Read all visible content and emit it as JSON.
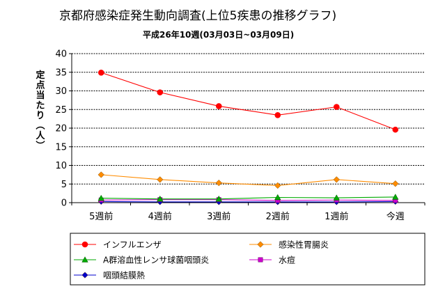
{
  "chart_data": {
    "type": "line",
    "title": "京都府感染症発生動向調査(上位5疾患の推移グラフ)",
    "subtitle": "平成26年10週(03月03日~03月09日)",
    "ylabel": "定点当たり(人)",
    "xlabel": "",
    "ylim": [
      0,
      40
    ],
    "yticks": [
      0,
      5,
      10,
      15,
      20,
      25,
      30,
      35,
      40
    ],
    "grid": true,
    "legend_position": "bottom",
    "categories": [
      "5週前",
      "4週前",
      "3週前",
      "2週前",
      "1週前",
      "今週"
    ],
    "series": [
      {
        "name": "インフルエンザ",
        "color": "#ff0000",
        "marker": "circle",
        "values": [
          34.9,
          29.6,
          25.9,
          23.5,
          25.7,
          19.6
        ]
      },
      {
        "name": "感染性胃腸炎",
        "color": "#ff8c00",
        "marker": "diamond",
        "values": [
          7.5,
          6.2,
          5.3,
          4.6,
          6.2,
          5.1
        ]
      },
      {
        "name": "A群溶血性レンサ球菌咽頭炎",
        "color": "#00aa00",
        "marker": "triangle",
        "values": [
          1.2,
          1.0,
          1.0,
          1.4,
          1.3,
          1.5
        ]
      },
      {
        "name": "水痘",
        "color": "#cc00cc",
        "marker": "square",
        "values": [
          0.7,
          0.8,
          0.8,
          0.6,
          0.7,
          0.6
        ]
      },
      {
        "name": "咽頭結膜熱",
        "color": "#0000cc",
        "marker": "diamond",
        "values": [
          0.3,
          0.2,
          0.2,
          0.2,
          0.2,
          0.3
        ]
      }
    ]
  }
}
